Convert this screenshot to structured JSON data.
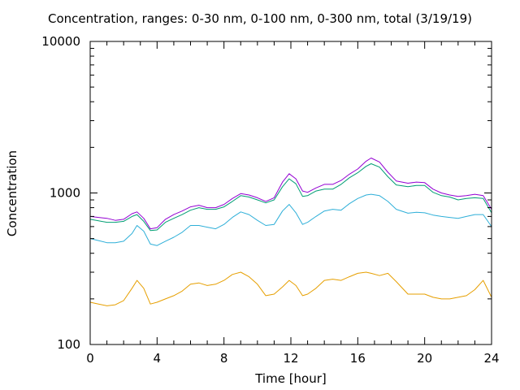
{
  "chart_data": {
    "type": "line",
    "title": "Concentration, ranges: 0-30 nm, 0-100 nm, 0-300 nm, total (3/19/19)",
    "xlabel": "Time [hour]",
    "ylabel": "Concentration",
    "xlim": [
      0,
      24
    ],
    "ylim": [
      100,
      10000
    ],
    "yscale": "log",
    "grid": false,
    "x_ticks": [
      "0",
      "4",
      "8",
      "12",
      "16",
      "20",
      "24"
    ],
    "y_ticks": [
      "100",
      "1000",
      "10000"
    ],
    "x": [
      0,
      0.5,
      1,
      1.5,
      2,
      2.5,
      2.8,
      3.2,
      3.6,
      4,
      4.5,
      5,
      5.5,
      6,
      6.5,
      7,
      7.5,
      8,
      8.5,
      9,
      9.5,
      10,
      10.5,
      11,
      11.5,
      11.9,
      12.3,
      12.7,
      13,
      13.5,
      14,
      14.5,
      15,
      15.5,
      16,
      16.5,
      16.8,
      17.3,
      17.8,
      18.3,
      19,
      19.5,
      20,
      20.5,
      21,
      21.5,
      22,
      22.5,
      23,
      23.5,
      24
    ],
    "series": [
      {
        "color": "#e69f00",
        "values": [
          190,
          185,
          180,
          183,
          195,
          235,
          265,
          235,
          185,
          190,
          200,
          210,
          225,
          250,
          255,
          245,
          250,
          265,
          290,
          300,
          280,
          250,
          210,
          215,
          240,
          265,
          245,
          210,
          215,
          235,
          265,
          270,
          265,
          280,
          295,
          300,
          295,
          285,
          295,
          260,
          215,
          215,
          215,
          205,
          200,
          200,
          205,
          210,
          230,
          265,
          205
        ]
      },
      {
        "color": "#2eafd8",
        "values": [
          500,
          485,
          470,
          470,
          480,
          540,
          610,
          560,
          460,
          450,
          480,
          510,
          550,
          610,
          610,
          595,
          580,
          620,
          690,
          750,
          720,
          660,
          610,
          620,
          760,
          840,
          740,
          620,
          640,
          700,
          760,
          780,
          770,
          850,
          920,
          970,
          980,
          960,
          880,
          780,
          735,
          745,
          740,
          715,
          700,
          690,
          680,
          700,
          720,
          720,
          600
        ]
      },
      {
        "color": "#009e73",
        "values": [
          670,
          655,
          640,
          640,
          650,
          700,
          720,
          650,
          565,
          570,
          640,
          680,
          720,
          770,
          800,
          780,
          780,
          810,
          880,
          960,
          940,
          900,
          860,
          900,
          1100,
          1240,
          1150,
          950,
          960,
          1030,
          1060,
          1060,
          1140,
          1260,
          1360,
          1500,
          1560,
          1480,
          1280,
          1130,
          1100,
          1120,
          1120,
          1010,
          960,
          940,
          900,
          920,
          930,
          920,
          740
        ]
      },
      {
        "color": "#9400d3",
        "values": [
          700,
          690,
          680,
          660,
          670,
          730,
          750,
          680,
          580,
          590,
          670,
          720,
          760,
          810,
          830,
          800,
          800,
          840,
          920,
          990,
          970,
          930,
          880,
          930,
          1180,
          1340,
          1240,
          1030,
          1010,
          1080,
          1140,
          1140,
          1210,
          1330,
          1440,
          1620,
          1700,
          1600,
          1370,
          1200,
          1160,
          1180,
          1170,
          1060,
          1000,
          970,
          950,
          960,
          980,
          960,
          780
        ]
      }
    ]
  }
}
